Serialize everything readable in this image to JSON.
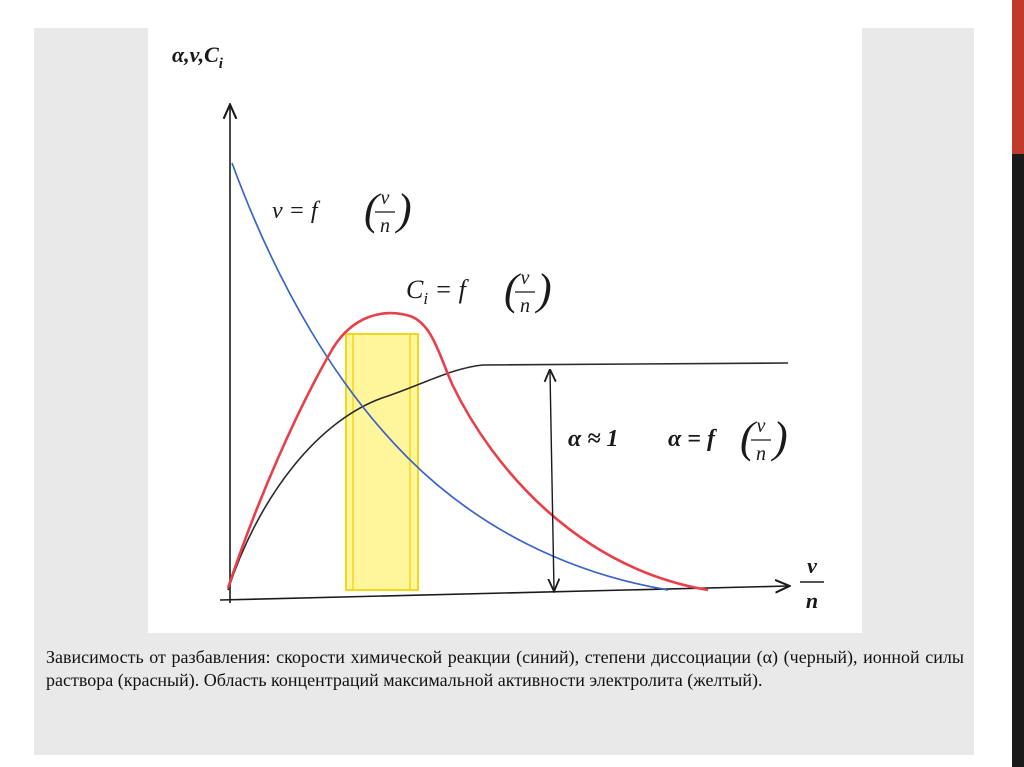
{
  "slide": {
    "accent_colors": {
      "top_bar": "#c0392b",
      "bottom_bar": "#1a1a1a"
    },
    "panel_background": "#e9e9e9"
  },
  "diagram": {
    "y_axis_label": "α,v,C",
    "y_axis_label_sub": "i",
    "x_axis_label_num": "v",
    "x_axis_label_den": "n",
    "curves": [
      {
        "name": "v",
        "color": "#3b63c8",
        "label_main": "v = f",
        "label_num": "v",
        "label_den": "n"
      },
      {
        "name": "Ci",
        "color": "#e8404a",
        "label_main": "C",
        "label_sub": "i",
        "label_rest": " = f",
        "label_num": "v",
        "label_den": "n"
      },
      {
        "name": "alpha",
        "color": "#2a2a2a",
        "label_main": "α = f",
        "label_num": "v",
        "label_den": "n"
      }
    ],
    "annotation_alpha_one": "α ≈ 1",
    "region_color": "#fff59a",
    "region_border_color": "#f1d81f"
  },
  "caption": "Зависимость от разбавления: скорости химической реакции (синий), степени диссоциации (α) (черный), ионной силы раствора (красный). Область концентраций максимальной активности электролита (желтый)."
}
